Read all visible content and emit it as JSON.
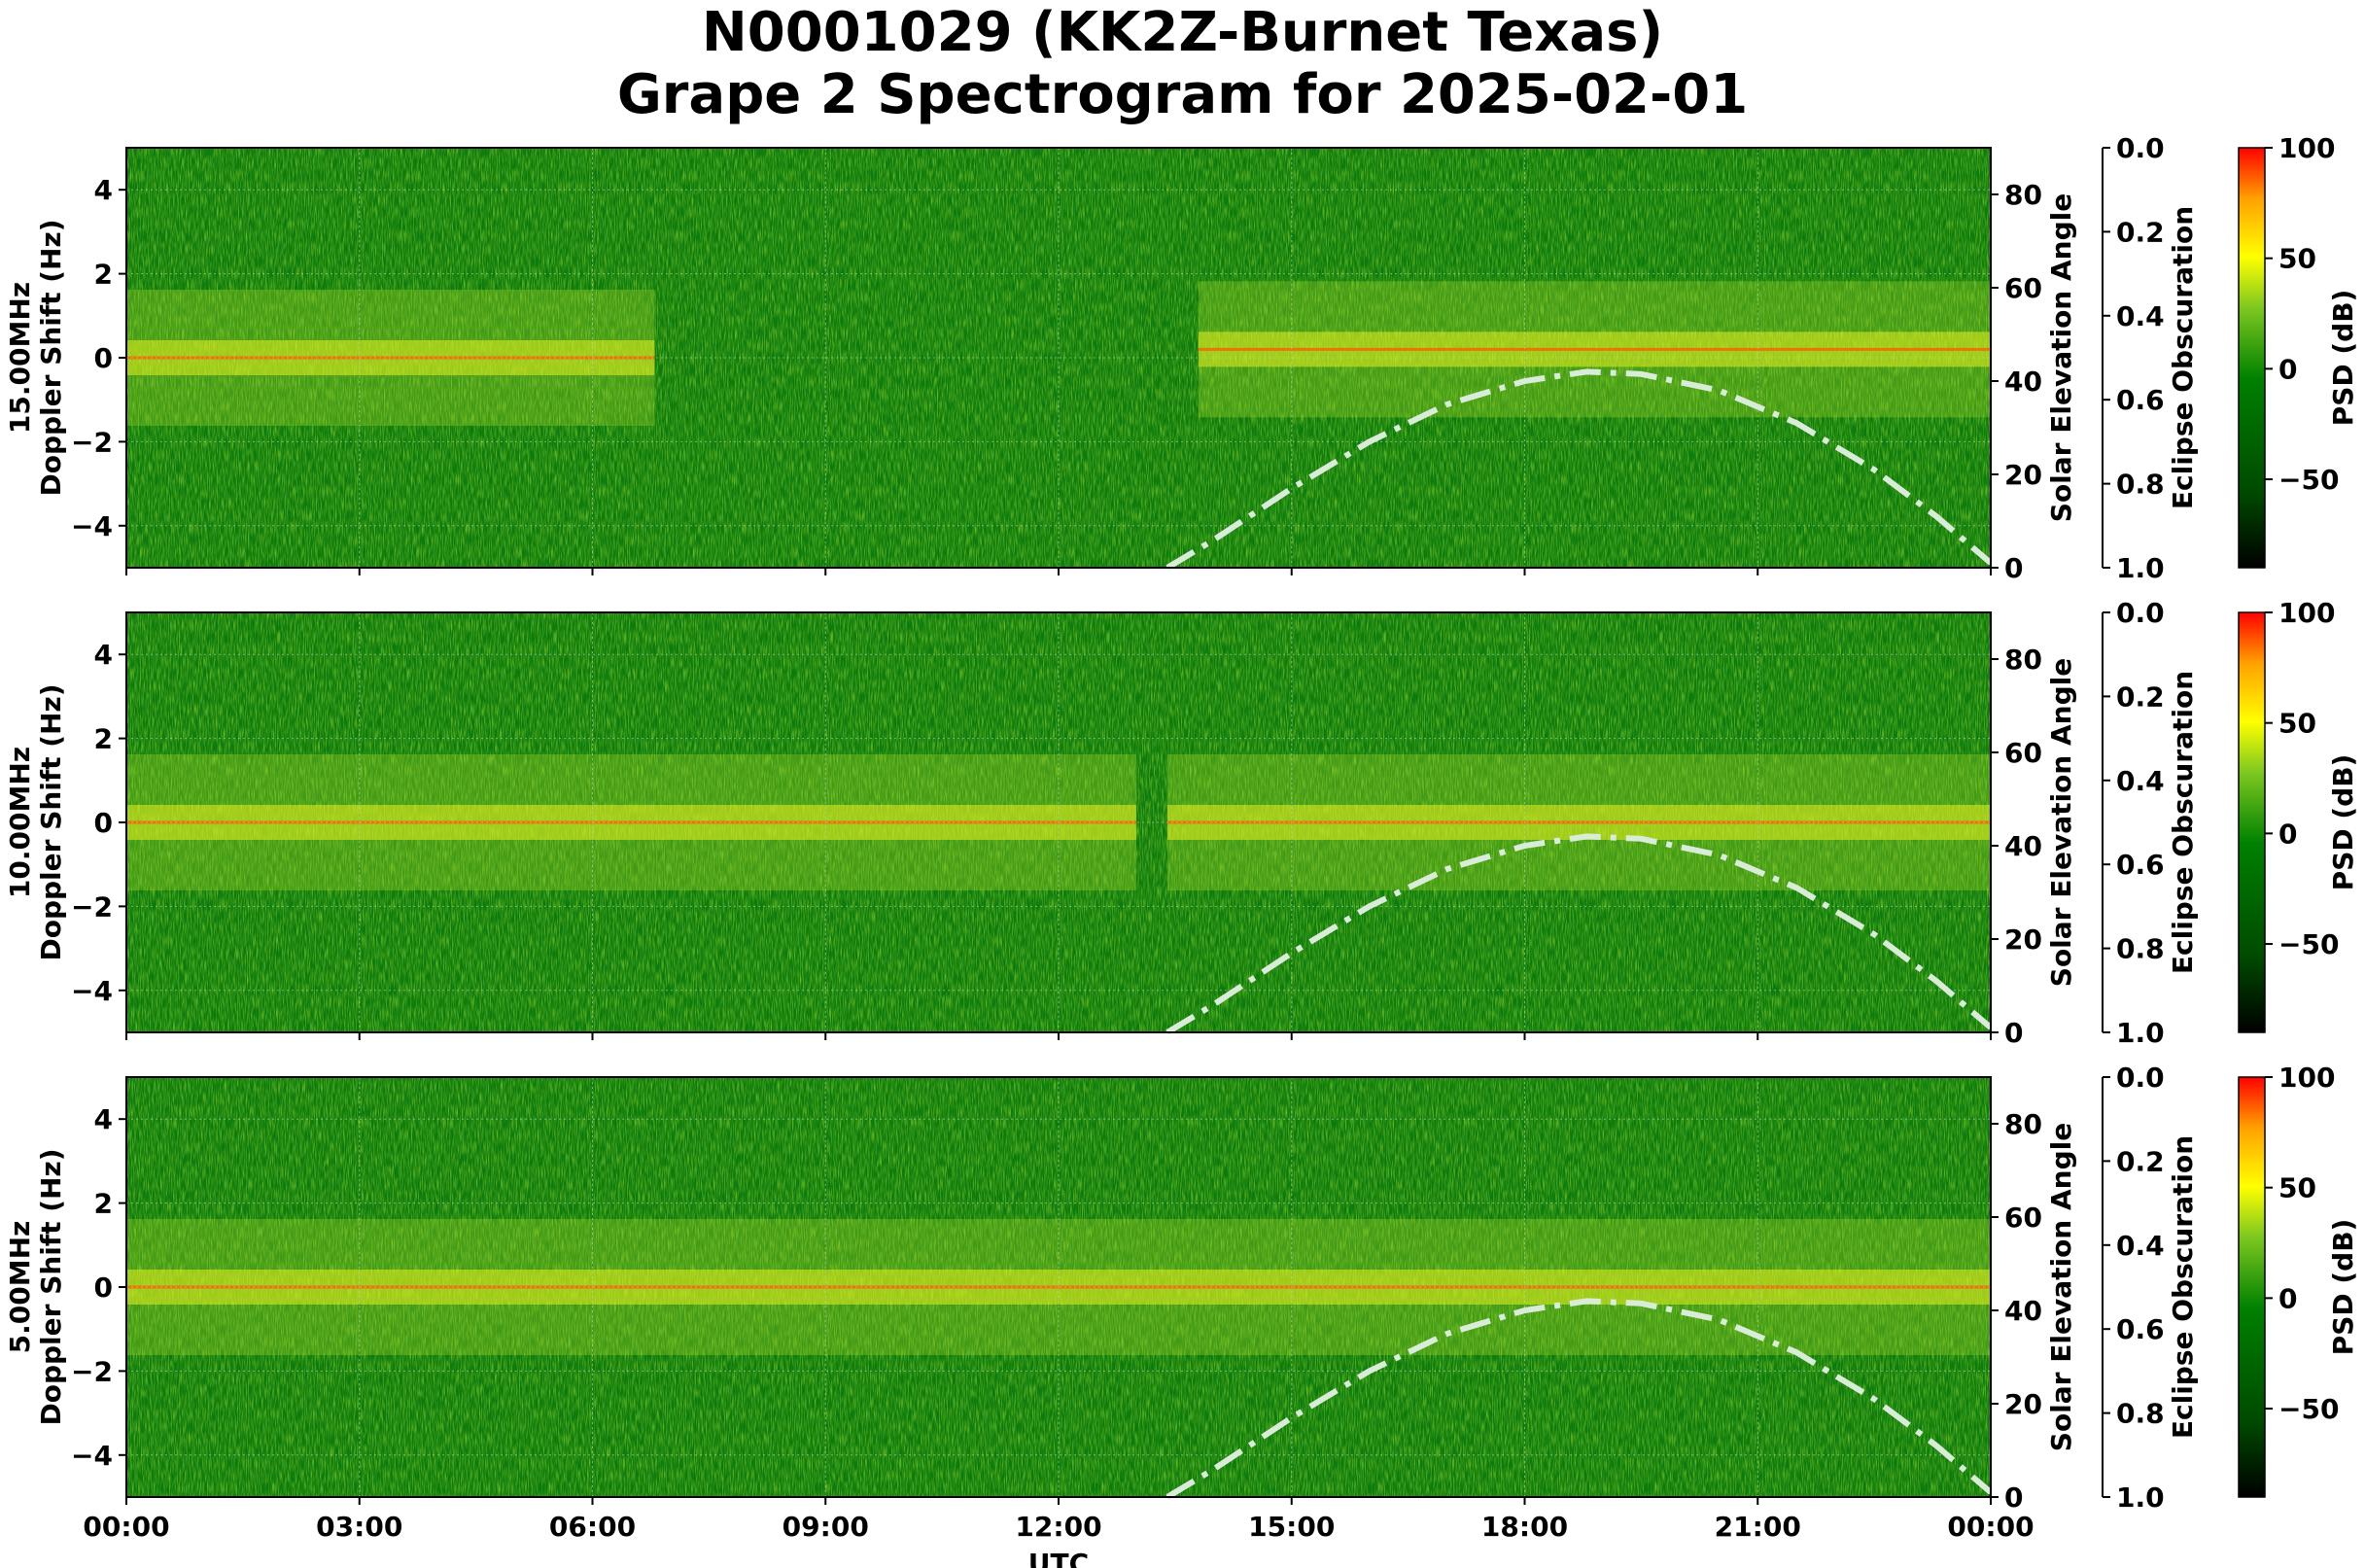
{
  "chart_data": {
    "type": "heatmap",
    "title": "N0001029 (KK2Z-Burnet Texas)",
    "subtitle": "Grape 2 Spectrogram for 2025-02-01",
    "xlabel": "UTC",
    "x_ticks": [
      "00:00",
      "03:00",
      "06:00",
      "09:00",
      "12:00",
      "15:00",
      "18:00",
      "21:00",
      "00:00"
    ],
    "x_range_hours": [
      0,
      24
    ],
    "y_ticks": [
      4,
      2,
      0,
      -2,
      -4
    ],
    "y_range": [
      -5,
      5
    ],
    "right_axis_label": "Solar Elevation Angle",
    "right_axis_ticks": [
      80,
      60,
      40,
      20,
      0
    ],
    "right_axis_range": [
      0,
      90
    ],
    "obscuration_label": "Eclipse Obscuration",
    "obscuration_ticks": [
      "0.0",
      "0.2",
      "0.4",
      "0.6",
      "0.8",
      "1.0"
    ],
    "colorbar_label": "PSD (dB)",
    "colorbar_ticks": [
      "100",
      "50",
      "0",
      "−50"
    ],
    "colorbar_range": [
      -90,
      100
    ],
    "colormap": [
      "#000000",
      "#006400",
      "#008000",
      "#9acd32",
      "#ffff00",
      "#ffa500",
      "#ff0000"
    ],
    "solar_elevation_curve": {
      "style": "dash-dot",
      "color": "#d8ecd8",
      "points": [
        [
          13.4,
          0
        ],
        [
          14.0,
          6
        ],
        [
          15.0,
          17
        ],
        [
          16.0,
          27
        ],
        [
          17.0,
          35
        ],
        [
          18.0,
          40
        ],
        [
          18.8,
          42
        ],
        [
          19.5,
          41.5
        ],
        [
          20.5,
          38
        ],
        [
          21.5,
          31
        ],
        [
          22.5,
          21
        ],
        [
          23.3,
          11
        ],
        [
          24.0,
          1
        ]
      ]
    },
    "panels": [
      {
        "ylabel_freq": "15.00MHz",
        "ylabel": "Doppler Shift (Hz)",
        "active_segments": [
          [
            0.0,
            6.8,
            0.0
          ],
          [
            13.8,
            24.0,
            0.2
          ]
        ]
      },
      {
        "ylabel_freq": "10.00MHz",
        "ylabel": "Doppler Shift (Hz)",
        "active_segments": [
          [
            0.0,
            4.5,
            0.0
          ],
          [
            4.5,
            13.0,
            0.0
          ],
          [
            13.4,
            24.0,
            0.0
          ]
        ]
      },
      {
        "ylabel_freq": "5.00MHz",
        "ylabel": "Doppler Shift (Hz)",
        "active_segments": [
          [
            0.0,
            14.5,
            0.0
          ],
          [
            14.5,
            24.0,
            0.0
          ]
        ]
      }
    ]
  }
}
